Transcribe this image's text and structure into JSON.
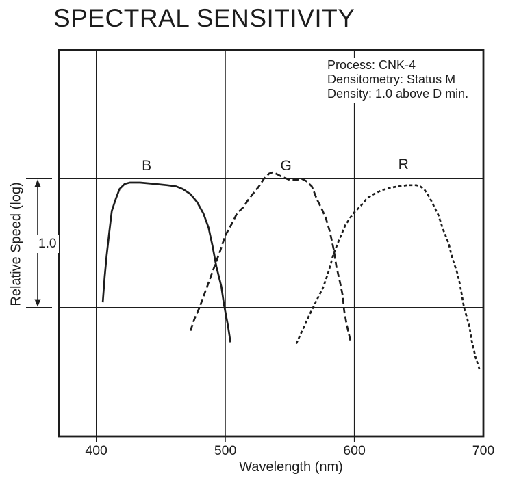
{
  "chart_data": {
    "type": "line",
    "title": "SPECTRAL SENSITIVITY",
    "xlabel": "Wavelength (nm)",
    "ylabel": "Relative Speed (log)",
    "notes": [
      "Process: CNK-4",
      "Densitometry: Status M",
      "Density: 1.0 above D min."
    ],
    "xlim": [
      371,
      700
    ],
    "ylim": [
      -1,
      2
    ],
    "x_ticks": [
      400,
      500,
      600,
      700
    ],
    "x_gridlines": [
      400,
      500,
      600
    ],
    "y_gridlines": [
      0,
      1
    ],
    "y_tick_numeric_labels_shown": false,
    "y_interval_label": "1.0",
    "y_interval_span": [
      0,
      1
    ],
    "legend_position": "labels-above-curves",
    "grid": true,
    "line_color": "#1d1d1d",
    "background_color": "#ffffff",
    "series": [
      {
        "name": "B",
        "style": "solid",
        "label_pos": {
          "x": 439,
          "y": 1.1
        },
        "points": [
          [
            405,
            0.04
          ],
          [
            406.5,
            0.24
          ],
          [
            408,
            0.4
          ],
          [
            410,
            0.58
          ],
          [
            412,
            0.75
          ],
          [
            415,
            0.84
          ],
          [
            418,
            0.92
          ],
          [
            422,
            0.96
          ],
          [
            426,
            0.97
          ],
          [
            434,
            0.97
          ],
          [
            445,
            0.96
          ],
          [
            455,
            0.95
          ],
          [
            462,
            0.94
          ],
          [
            467,
            0.92
          ],
          [
            473,
            0.88
          ],
          [
            478,
            0.82
          ],
          [
            483,
            0.73
          ],
          [
            487,
            0.62
          ],
          [
            490,
            0.48
          ],
          [
            493,
            0.32
          ],
          [
            497,
            0.16
          ],
          [
            499,
            0.02
          ],
          [
            502,
            -0.14
          ],
          [
            504,
            -0.27
          ]
        ]
      },
      {
        "name": "G",
        "style": "dashed",
        "label_pos": {
          "x": 547,
          "y": 1.1
        },
        "points": [
          [
            473,
            -0.18
          ],
          [
            476,
            -0.09
          ],
          [
            480,
            0.0
          ],
          [
            484,
            0.11
          ],
          [
            488,
            0.22
          ],
          [
            492,
            0.33
          ],
          [
            496,
            0.44
          ],
          [
            500,
            0.56
          ],
          [
            505,
            0.65
          ],
          [
            509,
            0.73
          ],
          [
            514,
            0.78
          ],
          [
            518,
            0.84
          ],
          [
            522,
            0.89
          ],
          [
            526,
            0.94
          ],
          [
            530,
            1.0
          ],
          [
            534,
            1.04
          ],
          [
            537,
            1.05
          ],
          [
            541,
            1.03
          ],
          [
            545,
            1.01
          ],
          [
            550,
            0.99
          ],
          [
            555,
            0.99
          ],
          [
            559,
            1.0
          ],
          [
            563,
            0.98
          ],
          [
            567,
            0.94
          ],
          [
            571,
            0.84
          ],
          [
            575,
            0.76
          ],
          [
            578,
            0.69
          ],
          [
            581,
            0.59
          ],
          [
            584,
            0.45
          ],
          [
            586,
            0.32
          ],
          [
            589,
            0.19
          ],
          [
            591,
            0.09
          ],
          [
            592,
            -0.02
          ],
          [
            594,
            -0.13
          ],
          [
            597,
            -0.26
          ]
        ]
      },
      {
        "name": "R",
        "style": "dash-dot",
        "label_pos": {
          "x": 638,
          "y": 1.11
        },
        "points": [
          [
            555,
            -0.28
          ],
          [
            560,
            -0.17
          ],
          [
            565,
            -0.06
          ],
          [
            569,
            0.02
          ],
          [
            576,
            0.16
          ],
          [
            580,
            0.28
          ],
          [
            584,
            0.42
          ],
          [
            588,
            0.52
          ],
          [
            593,
            0.64
          ],
          [
            597,
            0.7
          ],
          [
            600,
            0.74
          ],
          [
            605,
            0.79
          ],
          [
            610,
            0.85
          ],
          [
            615,
            0.88
          ],
          [
            621,
            0.91
          ],
          [
            628,
            0.93
          ],
          [
            634,
            0.94
          ],
          [
            641,
            0.95
          ],
          [
            648,
            0.95
          ],
          [
            651,
            0.94
          ],
          [
            654,
            0.92
          ],
          [
            658,
            0.86
          ],
          [
            661,
            0.8
          ],
          [
            665,
            0.72
          ],
          [
            669,
            0.6
          ],
          [
            673,
            0.5
          ],
          [
            676,
            0.38
          ],
          [
            680,
            0.26
          ],
          [
            682,
            0.17
          ],
          [
            685,
            0.0
          ],
          [
            689,
            -0.14
          ],
          [
            691,
            -0.26
          ],
          [
            694,
            -0.39
          ],
          [
            697,
            -0.48
          ]
        ]
      }
    ]
  }
}
